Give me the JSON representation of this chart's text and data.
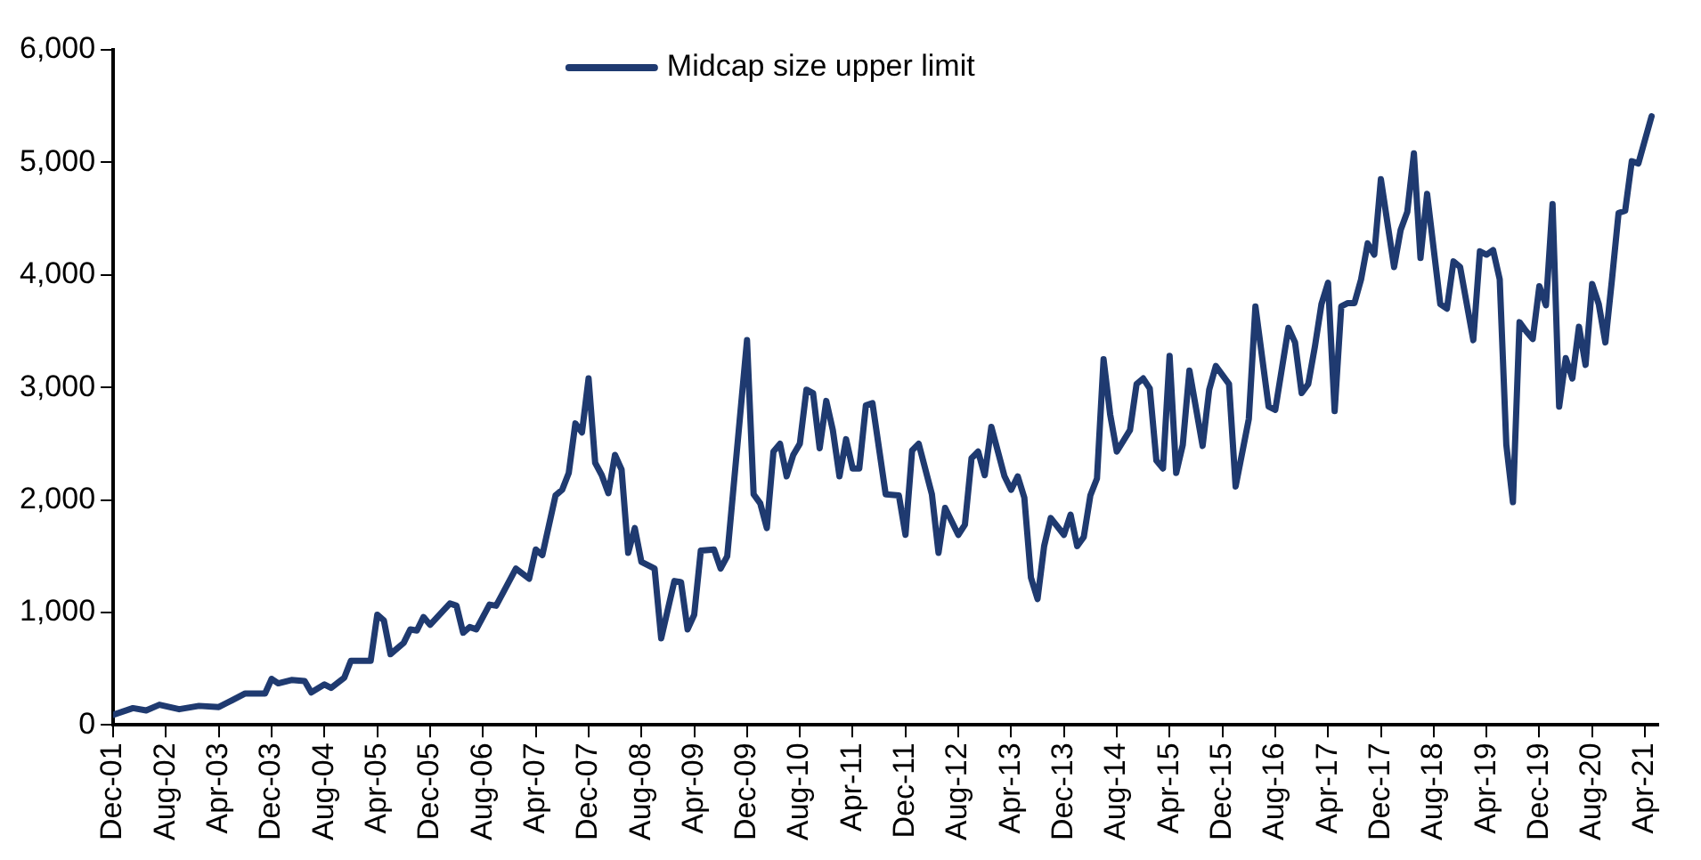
{
  "chart_data": {
    "type": "line",
    "legend": "top",
    "grid": false,
    "marker": "none",
    "line_style": "solid",
    "xlim": [
      "2001-12",
      "2021-06"
    ],
    "xticks": [
      {
        "value": "2001-12",
        "label": "Dec-01"
      },
      {
        "value": "2002-08",
        "label": "Aug-02"
      },
      {
        "value": "2003-04",
        "label": "Apr-03"
      },
      {
        "value": "2003-12",
        "label": "Dec-03"
      },
      {
        "value": "2004-08",
        "label": "Aug-04"
      },
      {
        "value": "2005-04",
        "label": "Apr-05"
      },
      {
        "value": "2005-12",
        "label": "Dec-05"
      },
      {
        "value": "2006-08",
        "label": "Aug-06"
      },
      {
        "value": "2007-04",
        "label": "Apr-07"
      },
      {
        "value": "2007-12",
        "label": "Dec-07"
      },
      {
        "value": "2008-08",
        "label": "Aug-08"
      },
      {
        "value": "2009-04",
        "label": "Apr-09"
      },
      {
        "value": "2009-12",
        "label": "Dec-09"
      },
      {
        "value": "2010-08",
        "label": "Aug-10"
      },
      {
        "value": "2011-04",
        "label": "Apr-11"
      },
      {
        "value": "2011-12",
        "label": "Dec-11"
      },
      {
        "value": "2012-08",
        "label": "Aug-12"
      },
      {
        "value": "2013-04",
        "label": "Apr-13"
      },
      {
        "value": "2013-12",
        "label": "Dec-13"
      },
      {
        "value": "2014-08",
        "label": "Aug-14"
      },
      {
        "value": "2015-04",
        "label": "Apr-15"
      },
      {
        "value": "2015-12",
        "label": "Dec-15"
      },
      {
        "value": "2016-08",
        "label": "Aug-16"
      },
      {
        "value": "2017-04",
        "label": "Apr-17"
      },
      {
        "value": "2017-12",
        "label": "Dec-17"
      },
      {
        "value": "2018-08",
        "label": "Aug-18"
      },
      {
        "value": "2019-04",
        "label": "Apr-19"
      },
      {
        "value": "2019-12",
        "label": "Dec-19"
      },
      {
        "value": "2020-08",
        "label": "Aug-20"
      },
      {
        "value": "2021-04",
        "label": "Apr-21"
      }
    ],
    "ylim": [
      0,
      6000
    ],
    "yticks": [
      {
        "value": 0,
        "label": "0"
      },
      {
        "value": 1000,
        "label": "1,000"
      },
      {
        "value": 2000,
        "label": "2,000"
      },
      {
        "value": 3000,
        "label": "3,000"
      },
      {
        "value": 4000,
        "label": "4,000"
      },
      {
        "value": 5000,
        "label": "5,000"
      },
      {
        "value": 6000,
        "label": "6,000"
      }
    ],
    "series": [
      {
        "name": "Midcap size upper limit",
        "color": "#1f3a70",
        "x": [
          "2001-12",
          "2002-03",
          "2002-05",
          "2002-07",
          "2002-10",
          "2003-01",
          "2003-04",
          "2003-06",
          "2003-08",
          "2003-11",
          "2003-12",
          "2004-01",
          "2004-03",
          "2004-05",
          "2004-06",
          "2004-08",
          "2004-09",
          "2004-11",
          "2004-12",
          "2005-03",
          "2005-04",
          "2005-05",
          "2005-06",
          "2005-08",
          "2005-09",
          "2005-10",
          "2005-11",
          "2005-12",
          "2006-03",
          "2006-04",
          "2006-05",
          "2006-06",
          "2006-07",
          "2006-09",
          "2006-10",
          "2007-01",
          "2007-03",
          "2007-04",
          "2007-05",
          "2007-07",
          "2007-08",
          "2007-09",
          "2007-10",
          "2007-11",
          "2007-12",
          "2008-01",
          "2008-02",
          "2008-03",
          "2008-04",
          "2008-05",
          "2008-06",
          "2008-07",
          "2008-08",
          "2008-10",
          "2008-11",
          "2009-01",
          "2009-02",
          "2009-03",
          "2009-04",
          "2009-05",
          "2009-07",
          "2009-08",
          "2009-09",
          "2009-12",
          "2010-01",
          "2010-02",
          "2010-03",
          "2010-04",
          "2010-05",
          "2010-06",
          "2010-07",
          "2010-08",
          "2010-09",
          "2010-10",
          "2010-11",
          "2010-12",
          "2011-01",
          "2011-02",
          "2011-03",
          "2011-04",
          "2011-05",
          "2011-06",
          "2011-07",
          "2011-09",
          "2011-11",
          "2011-12",
          "2012-01",
          "2012-02",
          "2012-04",
          "2012-05",
          "2012-06",
          "2012-08",
          "2012-09",
          "2012-10",
          "2012-11",
          "2012-12",
          "2013-01",
          "2013-03",
          "2013-04",
          "2013-05",
          "2013-06",
          "2013-07",
          "2013-08",
          "2013-09",
          "2013-10",
          "2013-12",
          "2014-01",
          "2014-02",
          "2014-03",
          "2014-04",
          "2014-05",
          "2014-06",
          "2014-07",
          "2014-08",
          "2014-10",
          "2014-11",
          "2014-12",
          "2015-01",
          "2015-02",
          "2015-03",
          "2015-04",
          "2015-05",
          "2015-06",
          "2015-07",
          "2015-09",
          "2015-10",
          "2015-11",
          "2016-01",
          "2016-02",
          "2016-04",
          "2016-05",
          "2016-07",
          "2016-08",
          "2016-10",
          "2016-11",
          "2016-12",
          "2017-01",
          "2017-02",
          "2017-03",
          "2017-04",
          "2017-05",
          "2017-06",
          "2017-07",
          "2017-08",
          "2017-09",
          "2017-10",
          "2017-11",
          "2017-12",
          "2018-02",
          "2018-03",
          "2018-04",
          "2018-05",
          "2018-06",
          "2018-07",
          "2018-09",
          "2018-10",
          "2018-11",
          "2018-12",
          "2019-02",
          "2019-03",
          "2019-04",
          "2019-05",
          "2019-06",
          "2019-07",
          "2019-08",
          "2019-09",
          "2019-10",
          "2019-11",
          "2019-12",
          "2020-01",
          "2020-02",
          "2020-03",
          "2020-04",
          "2020-05",
          "2020-06",
          "2020-07",
          "2020-08",
          "2020-09",
          "2020-10",
          "2020-11",
          "2020-12",
          "2021-01",
          "2021-02",
          "2021-03",
          "2021-05"
        ],
        "values": [
          90,
          150,
          130,
          180,
          140,
          170,
          160,
          220,
          280,
          280,
          410,
          370,
          400,
          390,
          290,
          360,
          330,
          420,
          570,
          570,
          980,
          930,
          630,
          730,
          850,
          840,
          960,
          890,
          1080,
          1060,
          820,
          870,
          850,
          1070,
          1060,
          1390,
          1300,
          1560,
          1510,
          2040,
          2090,
          2240,
          2680,
          2600,
          3080,
          2330,
          2220,
          2060,
          2400,
          2270,
          1530,
          1750,
          1450,
          1390,
          770,
          1280,
          1270,
          850,
          980,
          1550,
          1560,
          1390,
          1500,
          3420,
          2050,
          1970,
          1750,
          2430,
          2500,
          2210,
          2400,
          2500,
          2980,
          2950,
          2460,
          2880,
          2620,
          2210,
          2540,
          2280,
          2280,
          2840,
          2860,
          2050,
          2040,
          1690,
          2440,
          2500,
          2050,
          1530,
          1930,
          1690,
          1780,
          2370,
          2430,
          2220,
          2650,
          2210,
          2090,
          2210,
          2020,
          1310,
          1120,
          1590,
          1840,
          1690,
          1870,
          1590,
          1670,
          2040,
          2190,
          3250,
          2760,
          2430,
          2620,
          3030,
          3080,
          2990,
          2350,
          2280,
          3280,
          2240,
          2490,
          3150,
          2480,
          2980,
          3190,
          3030,
          2120,
          2720,
          3720,
          2830,
          2800,
          3530,
          3400,
          2950,
          3030,
          3360,
          3740,
          3930,
          2790,
          3720,
          3750,
          3750,
          3960,
          4280,
          4180,
          4850,
          4070,
          4400,
          4560,
          5080,
          4150,
          4720,
          3740,
          3700,
          4120,
          4070,
          3420,
          4210,
          4180,
          4220,
          3960,
          2490,
          1980,
          3580,
          3500,
          3430,
          3900,
          3730,
          4630,
          2830,
          3260,
          3080,
          3540,
          3200,
          3920,
          3740,
          3400,
          3960,
          4550,
          4570,
          5010,
          4990,
          5410
        ]
      }
    ]
  }
}
